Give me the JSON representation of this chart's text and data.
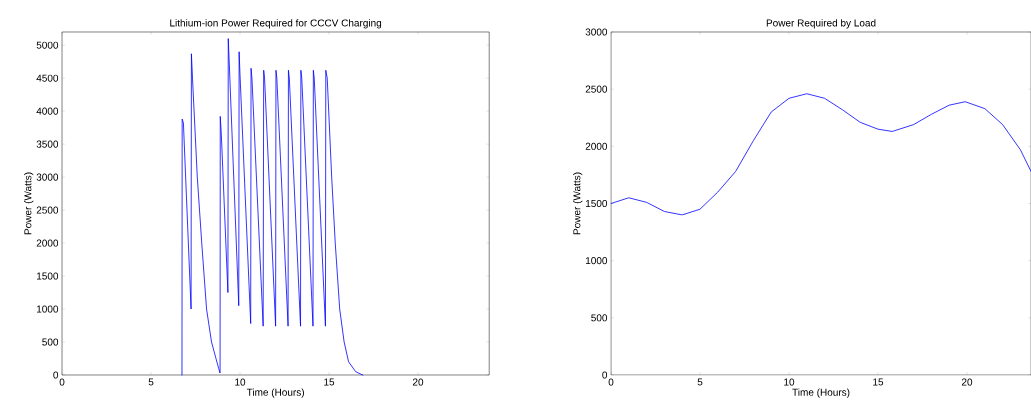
{
  "chart_data": [
    {
      "type": "line",
      "title": "Lithium-ion Power Required for CCCV Charging",
      "xlabel": "Time (Hours)",
      "ylabel": "Power (Watts)",
      "color": "#0000ff",
      "x": [
        6.74,
        6.75,
        6.82,
        7.25,
        7.27,
        7.33,
        7.6,
        7.85,
        8.12,
        8.4,
        8.65,
        8.8,
        8.88,
        8.89,
        8.95,
        9.32,
        9.34,
        9.4,
        9.93,
        9.95,
        10.0,
        10.6,
        10.62,
        10.67,
        11.3,
        11.33,
        11.38,
        12.0,
        12.02,
        12.07,
        12.7,
        12.72,
        12.77,
        13.4,
        13.42,
        13.47,
        14.1,
        14.12,
        14.17,
        14.8,
        14.82,
        14.9,
        15.15,
        15.35,
        15.6,
        15.85,
        16.1,
        16.5,
        16.8,
        16.9
      ],
      "values": [
        0,
        3880,
        3820,
        1000,
        4870,
        4500,
        3000,
        2000,
        1000,
        500,
        250,
        100,
        30,
        3920,
        3650,
        1250,
        5100,
        4700,
        1050,
        4900,
        4550,
        780,
        4650,
        4500,
        740,
        4620,
        4500,
        740,
        4620,
        4500,
        740,
        4620,
        4500,
        740,
        4620,
        4500,
        740,
        4620,
        4500,
        740,
        4620,
        4500,
        3000,
        2000,
        1000,
        500,
        200,
        50,
        10,
        0
      ],
      "xlim": [
        0,
        24
      ],
      "ylim": [
        0,
        5200
      ],
      "xticks": [
        0,
        5,
        10,
        15,
        20
      ],
      "yticks": [
        0,
        500,
        1000,
        1500,
        2000,
        2500,
        3000,
        3500,
        4000,
        4500,
        5000
      ]
    },
    {
      "type": "line",
      "title": "Power Required by Load",
      "xlabel": "Time (Hours)",
      "ylabel": "Power (Watts)",
      "color": "#0000ff",
      "x": [
        0,
        1,
        2,
        3,
        4,
        5,
        6,
        7,
        8,
        9,
        10,
        11,
        12,
        13,
        14,
        15,
        15.8,
        17,
        18,
        19,
        19.9,
        21,
        22,
        23,
        23.6
      ],
      "values": [
        1500,
        1550,
        1510,
        1430,
        1400,
        1450,
        1600,
        1780,
        2050,
        2300,
        2420,
        2460,
        2420,
        2320,
        2210,
        2150,
        2130,
        2190,
        2280,
        2360,
        2390,
        2330,
        2190,
        1970,
        1780
      ],
      "xlim": [
        0,
        23.6
      ],
      "ylim": [
        0,
        3000
      ],
      "xticks": [
        0,
        5,
        10,
        15,
        20
      ],
      "yticks": [
        0,
        500,
        1000,
        1500,
        2000,
        2500,
        3000
      ]
    }
  ]
}
